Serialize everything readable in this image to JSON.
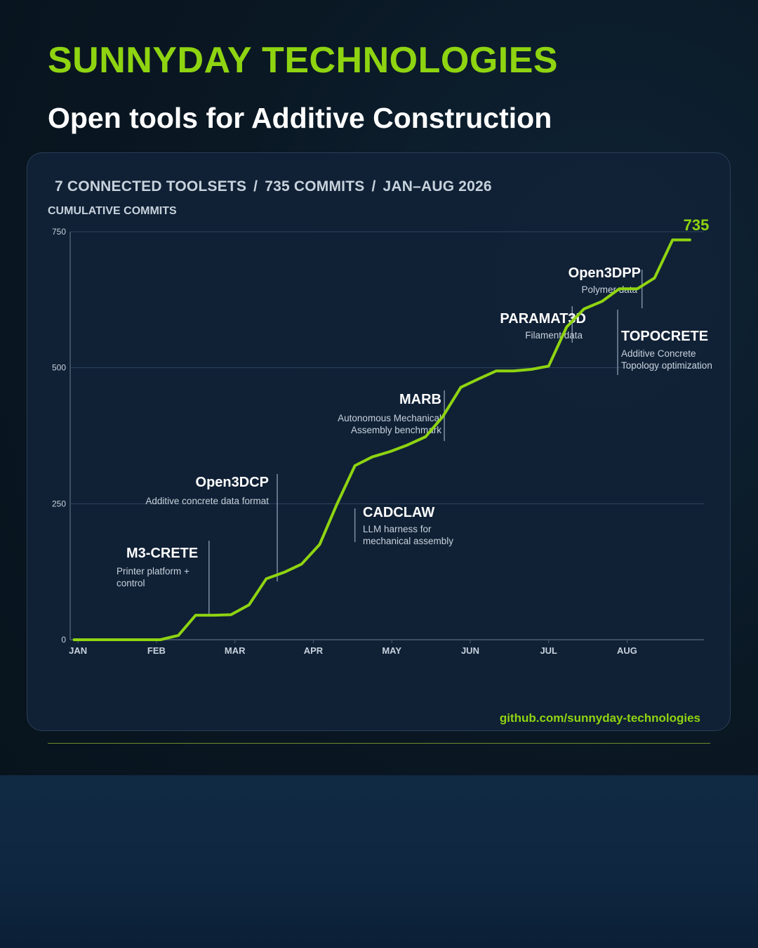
{
  "brand": "SUNNYDAY TECHNOLOGIES",
  "subtitle": "Open tools for Additive Construction",
  "header": {
    "toolsets": "7 CONNECTED TOOLSETS",
    "commits": "735 COMMITS",
    "period": "JAN–AUG 2026",
    "separator": "/"
  },
  "footer_link": "github.com/sunnyday-technologies",
  "colors": {
    "accent": "#8fd411",
    "text": "#ffffff",
    "muted": "#c7d2dc",
    "card": "#112137"
  },
  "chart_data": {
    "type": "line",
    "ylabel": "CUMULATIVE COMMITS",
    "ylim": [
      0,
      750
    ],
    "yticks": [
      0,
      250,
      500,
      750
    ],
    "month_labels": [
      "JAN",
      "FEB",
      "MAR",
      "APR",
      "MAY",
      "JUN",
      "JUL",
      "AUG"
    ],
    "xlim": [
      0,
      8.08
    ],
    "grid": "horizontal",
    "end_label": "735",
    "x": [
      0.05,
      0.27,
      0.5,
      0.73,
      0.95,
      1.15,
      1.38,
      1.6,
      1.83,
      2.05,
      2.28,
      2.5,
      2.73,
      2.95,
      3.18,
      3.4,
      3.63,
      3.85,
      4.08,
      4.3,
      4.53,
      4.75,
      4.98,
      5.2,
      5.43,
      5.65,
      5.88,
      6.1,
      6.33,
      6.55,
      6.78,
      7.0,
      7.23,
      7.45,
      7.68,
      7.9
    ],
    "y": [
      0,
      0,
      0,
      0,
      0,
      0,
      8,
      45,
      45,
      46,
      64,
      112,
      124,
      139,
      175,
      249,
      320,
      336,
      346,
      358,
      373,
      410,
      464,
      479,
      494,
      494,
      497,
      503,
      575,
      608,
      622,
      645,
      645,
      665,
      735,
      735
    ],
    "annotations": [
      {
        "name": "M3-CRETE",
        "desc": [
          "Printer platform +",
          "control"
        ],
        "x": 1.77
      },
      {
        "name": "Open3DCP",
        "desc": [
          "Additive concrete data format"
        ],
        "x": 2.64
      },
      {
        "name": "CADCLAW",
        "desc": [
          "LLM harness for",
          "mechanical assembly"
        ],
        "x": 3.63
      },
      {
        "name": "MARB",
        "desc": [
          "Autonomous Mechanical",
          "Assembly benchmark"
        ],
        "x": 4.77
      },
      {
        "name": "PARAMAT3D",
        "desc": [
          "Filament data"
        ],
        "x": 6.4
      },
      {
        "name": "TOPOCRETE",
        "desc": [
          "Additive Concrete",
          "Topology optimization"
        ],
        "x": 6.98
      },
      {
        "name": "Open3DPP",
        "desc": [
          "Polymer data"
        ],
        "x": 7.29
      }
    ]
  }
}
